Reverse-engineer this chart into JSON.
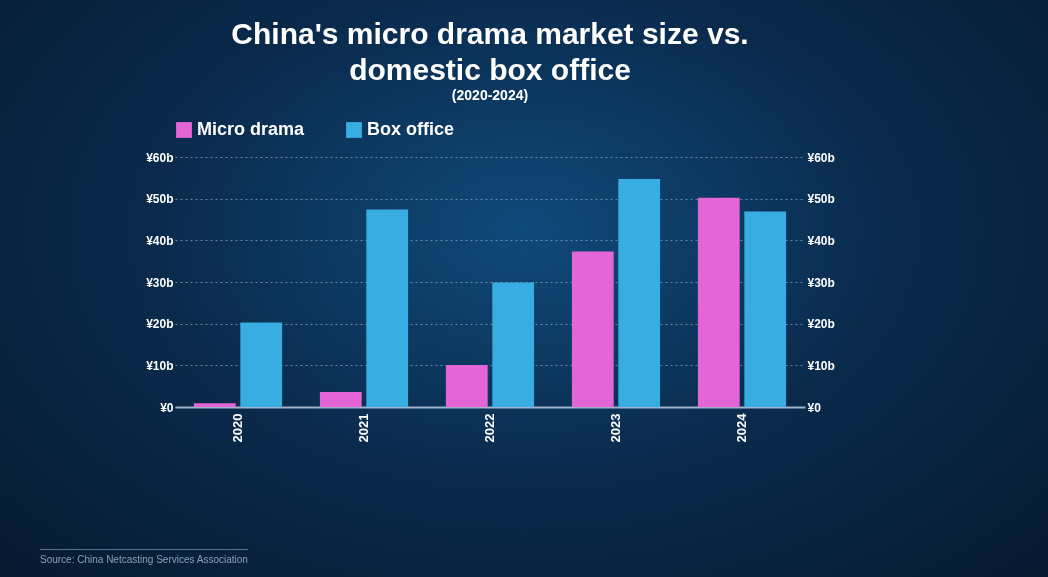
{
  "chart_data": {
    "type": "bar",
    "title": "China's micro drama market size vs. domestic box office",
    "subtitle": "(2020-2024)",
    "categories": [
      "2020",
      "2021",
      "2022",
      "2023",
      "2024"
    ],
    "series": [
      {
        "name": "Micro drama",
        "color": "#e466d6",
        "values": [
          0.9,
          3.6,
          10.1,
          37.3,
          50.2
        ]
      },
      {
        "name": "Box office",
        "color": "#38ade2",
        "values": [
          20.3,
          47.4,
          29.9,
          54.7,
          46.9
        ]
      }
    ],
    "ylim": [
      0,
      60
    ],
    "yticks": [
      {
        "value": 0,
        "label": "¥0"
      },
      {
        "value": 10,
        "label": "¥10b"
      },
      {
        "value": 20,
        "label": "¥20b"
      },
      {
        "value": 30,
        "label": "¥30b"
      },
      {
        "value": 40,
        "label": "¥40b"
      },
      {
        "value": 50,
        "label": "¥50b"
      },
      {
        "value": 60,
        "label": "¥60b"
      }
    ],
    "y2lim": [
      0,
      60
    ],
    "y2ticks": [
      {
        "value": 0,
        "label": "¥0"
      },
      {
        "value": 10,
        "label": "¥10b"
      },
      {
        "value": 20,
        "label": "¥20b"
      },
      {
        "value": 30,
        "label": "¥30b"
      },
      {
        "value": 40,
        "label": "¥40b"
      },
      {
        "value": 50,
        "label": "¥50b"
      },
      {
        "value": 60,
        "label": "¥60b"
      }
    ],
    "grid": "y",
    "legend": "top",
    "annotations": [
      "Source: China Netcasting Services Association"
    ]
  }
}
